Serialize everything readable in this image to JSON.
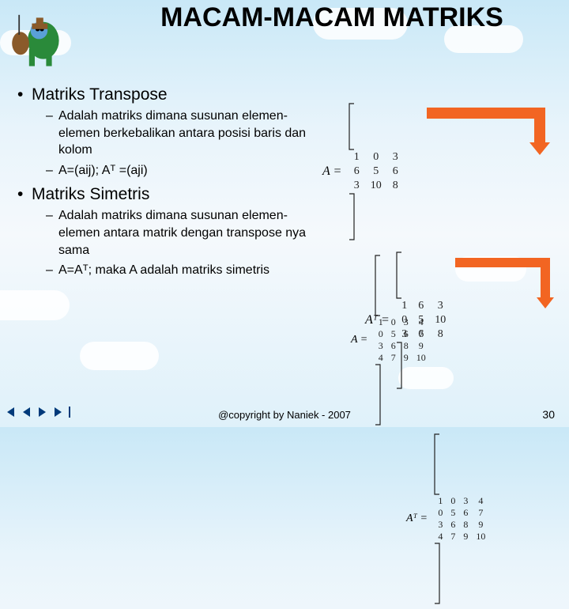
{
  "title": "MACAM-MACAM MATRIKS",
  "section1": {
    "heading": "Matriks Transpose",
    "sub1": "Adalah matriks dimana susunan elemen-elemen berkebalikan antara posisi baris dan kolom",
    "sub2": "A=(aij); Aᵀ =(aji)"
  },
  "section2": {
    "heading": "Matriks Simetris",
    "sub1": "Adalah matriks dimana susunan elemen-elemen antara matrik dengan transpose nya sama",
    "sub2": "A=Aᵀ; maka A adalah matriks simetris"
  },
  "fig1": {
    "A_label": "A =",
    "A": [
      [
        1,
        0,
        3
      ],
      [
        6,
        5,
        6
      ],
      [
        3,
        10,
        8
      ]
    ],
    "AT_label_html": "Aᵀ =",
    "AT": [
      [
        1,
        6,
        3
      ],
      [
        0,
        5,
        10
      ],
      [
        3,
        6,
        8
      ]
    ],
    "arrow_color": "#f26522"
  },
  "fig2": {
    "A_label": "A =",
    "A": [
      [
        1,
        0,
        3,
        4
      ],
      [
        0,
        5,
        6,
        7
      ],
      [
        3,
        6,
        8,
        9
      ],
      [
        4,
        7,
        9,
        10
      ]
    ],
    "AT_label_html": "Aᵀ =",
    "AT": [
      [
        1,
        0,
        3,
        4
      ],
      [
        0,
        5,
        6,
        7
      ],
      [
        3,
        6,
        8,
        9
      ],
      [
        4,
        7,
        9,
        10
      ]
    ],
    "arrow_color": "#f26522"
  },
  "footer": {
    "copyright": "@copyright by Naniek - 2007",
    "page": "30"
  },
  "colors": {
    "bg_top": "#c9e8f7",
    "accent": "#f26522",
    "nav": "#003a7a"
  }
}
